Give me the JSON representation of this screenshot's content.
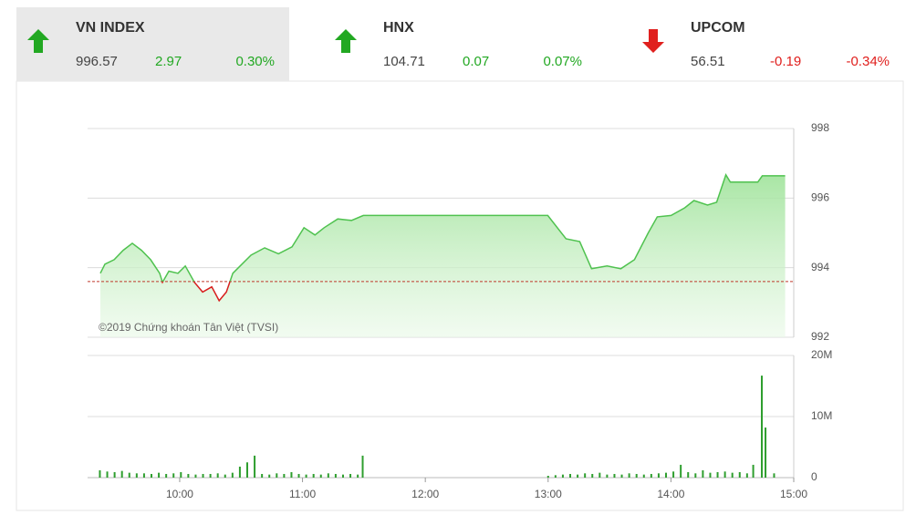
{
  "indices": [
    {
      "name": "VN INDEX",
      "value": "996.57",
      "change": "2.97",
      "percent": "0.30%",
      "direction": "up",
      "color": "#22a822",
      "selected": true
    },
    {
      "name": "HNX",
      "value": "104.71",
      "change": "0.07",
      "percent": "0.07%",
      "direction": "up",
      "color": "#22a822",
      "selected": false
    },
    {
      "name": "UPCOM",
      "value": "56.51",
      "change": "-0.19",
      "percent": "-0.34%",
      "direction": "down",
      "color": "#e0201e",
      "selected": false
    }
  ],
  "watermark": "©2019 Chứng khoán Tân Việt (TVSI)",
  "chart_data": [
    {
      "type": "area",
      "x": [
        9.354,
        9.391,
        9.466,
        9.54,
        9.614,
        9.689,
        9.763,
        9.837,
        9.86,
        9.912,
        9.986,
        10.046,
        10.12,
        10.187,
        10.261,
        10.321,
        10.38,
        10.433,
        10.507,
        10.581,
        10.692,
        10.804,
        10.915,
        11.012,
        11.101,
        11.176,
        11.287,
        11.399,
        11.495,
        12.254,
        12.997,
        13.146,
        13.257,
        13.354,
        13.48,
        13.592,
        13.703,
        13.815,
        13.889,
        14.001,
        14.112,
        14.187,
        14.298,
        14.372,
        14.447,
        14.484,
        14.707,
        14.744,
        14.93
      ],
      "values": [
        993.84,
        994.1,
        994.23,
        994.5,
        994.7,
        994.5,
        994.23,
        993.84,
        993.58,
        993.9,
        993.84,
        994.05,
        993.58,
        993.3,
        993.45,
        993.05,
        993.3,
        993.84,
        994.1,
        994.36,
        994.57,
        994.4,
        994.6,
        995.15,
        994.94,
        995.15,
        995.4,
        995.36,
        995.5,
        995.5,
        995.5,
        994.83,
        994.75,
        993.97,
        994.05,
        993.97,
        994.23,
        995.0,
        995.46,
        995.5,
        995.72,
        995.93,
        995.8,
        995.88,
        996.67,
        996.46,
        996.46,
        996.64,
        996.64
      ],
      "reference": 993.6,
      "color": "#4fc24f",
      "down_color": "#d81e1e",
      "reference_color": "#c0392b",
      "xlim": [
        9.25,
        15
      ],
      "ylim": [
        992,
        998
      ],
      "yticks": [
        998,
        996,
        994,
        992
      ],
      "grid": true
    },
    {
      "type": "bar",
      "x": [
        9.35,
        9.41,
        9.47,
        9.53,
        9.59,
        9.65,
        9.71,
        9.77,
        9.83,
        9.89,
        9.95,
        10.01,
        10.07,
        10.13,
        10.19,
        10.25,
        10.31,
        10.37,
        10.43,
        10.49,
        10.55,
        10.61,
        10.67,
        10.73,
        10.79,
        10.85,
        10.91,
        10.97,
        11.03,
        11.09,
        11.15,
        11.21,
        11.27,
        11.33,
        11.39,
        11.45,
        11.49,
        13.0,
        13.06,
        13.12,
        13.18,
        13.24,
        13.3,
        13.36,
        13.42,
        13.48,
        13.54,
        13.6,
        13.66,
        13.72,
        13.78,
        13.84,
        13.9,
        13.96,
        14.02,
        14.08,
        14.14,
        14.2,
        14.26,
        14.32,
        14.38,
        14.44,
        14.5,
        14.56,
        14.62,
        14.67,
        14.74,
        14.77,
        14.84
      ],
      "values": [
        1200000,
        1000000,
        900000,
        1100000,
        800000,
        700000,
        700000,
        600000,
        800000,
        600000,
        700000,
        900000,
        600000,
        500000,
        600000,
        600000,
        700000,
        500000,
        800000,
        1800000,
        2500000,
        3600000,
        600000,
        500000,
        700000,
        600000,
        900000,
        600000,
        500000,
        600000,
        500000,
        700000,
        600000,
        500000,
        600000,
        500000,
        3600000,
        300000,
        400000,
        500000,
        600000,
        500000,
        700000,
        600000,
        800000,
        500000,
        600000,
        500000,
        700000,
        600000,
        500000,
        600000,
        700000,
        800000,
        1000000,
        2100000,
        900000,
        700000,
        1200000,
        800000,
        900000,
        1000000,
        800000,
        900000,
        700000,
        2100000,
        16700000,
        8200000,
        700000
      ],
      "color": "#2e9e2e",
      "xlim": [
        9.25,
        15
      ],
      "ylim": [
        0,
        20000000
      ],
      "yticks": [
        {
          "value": 20000000,
          "label": "20M"
        },
        {
          "value": 10000000,
          "label": "10M"
        },
        0
      ],
      "xticks": [
        {
          "value": 10,
          "label": "10:00"
        },
        {
          "value": 11,
          "label": "11:00"
        },
        {
          "value": 12,
          "label": "12:00"
        },
        {
          "value": 13,
          "label": "13:00"
        },
        {
          "value": 14,
          "label": "14:00"
        },
        {
          "value": 15,
          "label": "15:00"
        }
      ],
      "grid": true
    }
  ]
}
